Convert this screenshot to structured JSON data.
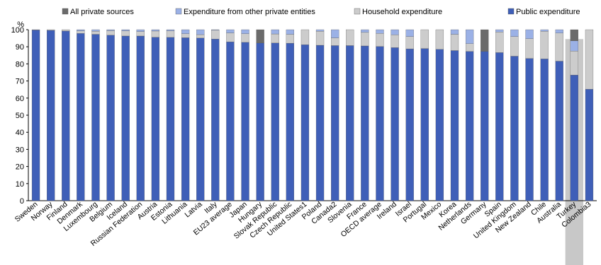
{
  "chart_data": {
    "type": "bar",
    "stacked": true,
    "ylabel": "%",
    "ylim": [
      0,
      100
    ],
    "yticks": [
      0,
      10,
      20,
      30,
      40,
      50,
      60,
      70,
      80,
      90,
      100
    ],
    "legend_position": "top",
    "highlight_categories": [
      "Turkey"
    ],
    "highlight_color": "#c8c8c8",
    "categories": [
      "Sweden",
      "Norway",
      "Finland",
      "Denmark",
      "Luxembourg",
      "Belgium",
      "Iceland",
      "Russian Federation",
      "Austria",
      "Estonia",
      "Lithuania",
      "Latvia",
      "Italy",
      "EU23 average",
      "Japan",
      "Hungary",
      "Slovak Republic",
      "Czech Republic",
      "United States1",
      "Poland",
      "Canada2",
      "Slovenia",
      "France",
      "OECD average",
      "Ireland",
      "Israel",
      "Portugal",
      "Mexico",
      "Korea",
      "Netherlands",
      "Germany",
      "Spain",
      "United Kingdom",
      "New Zealand",
      "Chile",
      "Australia",
      "Turkey",
      "Colombia3"
    ],
    "series": [
      {
        "name": "Public expenditure",
        "color": "#3f5fb8",
        "values": [
          99.8,
          99.6,
          99.2,
          97.8,
          97.3,
          96.8,
          96.3,
          96.3,
          95.6,
          95.5,
          95.3,
          95.1,
          94.5,
          92.9,
          92.6,
          92.2,
          92.2,
          92.1,
          91.2,
          90.9,
          90.7,
          90.7,
          90.5,
          90.2,
          89.5,
          88.8,
          89.0,
          88.5,
          87.8,
          87.3,
          87.3,
          86.6,
          84.5,
          83.2,
          82.9,
          81.6,
          73.5,
          65.2
        ]
      },
      {
        "name": "Household expenditure",
        "color": "#cccccc",
        "values": [
          0.2,
          0.4,
          0.8,
          1.5,
          1.8,
          2.6,
          3.0,
          2.6,
          3.6,
          3.8,
          2.3,
          2.0,
          5.2,
          5.2,
          5.0,
          0,
          5.3,
          5.2,
          8.8,
          8.2,
          4.5,
          9.3,
          7.9,
          7.6,
          7.5,
          7.2,
          11.0,
          11.5,
          9.5,
          4.5,
          0,
          12.0,
          11.5,
          11.5,
          16.2,
          16.4,
          14.0,
          34.8
        ]
      },
      {
        "name": "Expenditure from other private entities",
        "color": "#9bb1e6",
        "values": [
          0,
          0,
          0,
          0.7,
          0.9,
          0.6,
          0.7,
          1.1,
          0.8,
          0.7,
          2.4,
          2.9,
          0.3,
          1.9,
          2.4,
          0,
          2.5,
          2.7,
          0,
          0.9,
          4.8,
          0,
          1.6,
          2.2,
          3.0,
          4.0,
          0,
          0,
          2.7,
          8.2,
          0,
          1.4,
          4.0,
          5.3,
          0.9,
          2.0,
          6.0,
          0
        ]
      },
      {
        "name": "All private sources",
        "color": "#6b6b6b",
        "values": [
          0,
          0,
          0,
          0,
          0,
          0,
          0,
          0,
          0,
          0,
          0,
          0,
          0,
          0,
          0,
          7.8,
          0,
          0,
          0,
          0,
          0,
          0,
          0,
          0,
          0,
          0,
          0,
          0,
          0,
          0,
          12.7,
          0,
          0,
          0,
          0,
          0,
          6.5,
          0
        ]
      }
    ],
    "legend_order": [
      "All private sources",
      "Expenditure from other private entities",
      "Household expenditure",
      "Public expenditure"
    ]
  }
}
